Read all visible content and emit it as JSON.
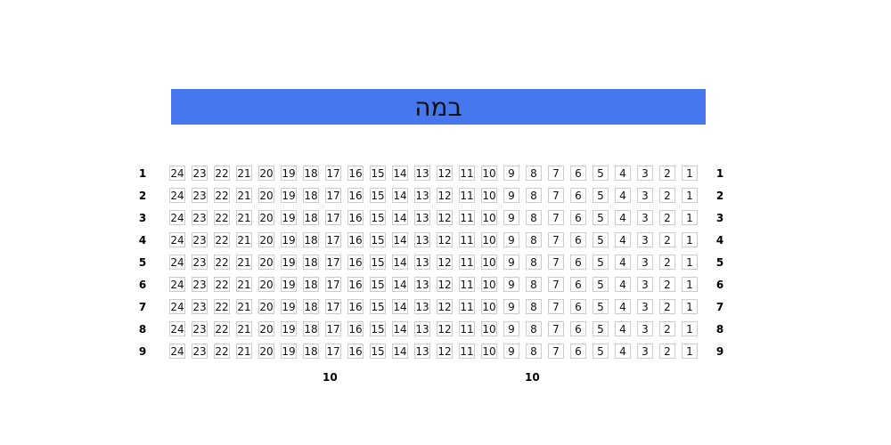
{
  "stage": {
    "label": "במה",
    "color": "#4677ee"
  },
  "rows": [
    "1",
    "2",
    "3",
    "4",
    "5",
    "6",
    "7",
    "8",
    "9"
  ],
  "seats": [
    "24",
    "23",
    "22",
    "21",
    "20",
    "19",
    "18",
    "17",
    "16",
    "15",
    "14",
    "13",
    "12",
    "11",
    "10",
    "9",
    "8",
    "7",
    "6",
    "5",
    "4",
    "3",
    "2",
    "1"
  ],
  "section_labels": [
    "10",
    "10"
  ]
}
